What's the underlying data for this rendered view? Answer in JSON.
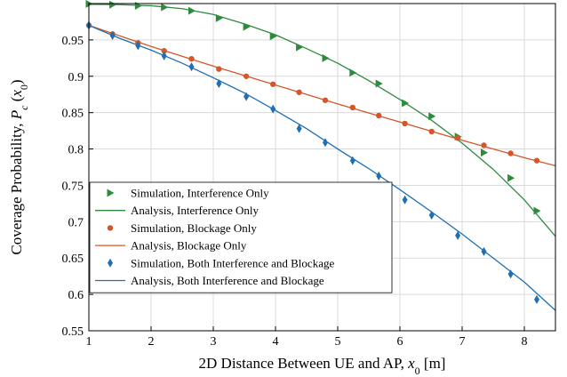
{
  "chart_data": {
    "type": "line",
    "xlabel": "2D Distance Between UE and AP, x0 [m]",
    "ylabel": "Coverage Probability, Pc (x0)",
    "xlim": [
      1,
      8.5
    ],
    "ylim": [
      0.55,
      1.0
    ],
    "xticks": [
      "1",
      "2",
      "3",
      "4",
      "5",
      "6",
      "7",
      "8"
    ],
    "yticks": [
      "0.55",
      "0.6",
      "0.65",
      "0.7",
      "0.75",
      "0.8",
      "0.85",
      "0.9",
      "0.95"
    ],
    "grid": true,
    "legend_position": "bottom-left",
    "series": [
      {
        "name": "Simulation, Interference Only",
        "kind": "markers",
        "marker": "triangle-right",
        "color": "#2e8b3e",
        "x": [
          1.0,
          1.38,
          1.79,
          2.21,
          2.65,
          3.09,
          3.53,
          3.96,
          4.38,
          4.8,
          5.24,
          5.66,
          6.08,
          6.51,
          6.93,
          7.35,
          7.78,
          8.2
        ],
        "y": [
          0.9995,
          0.9985,
          0.997,
          0.995,
          0.99,
          0.98,
          0.968,
          0.955,
          0.94,
          0.925,
          0.905,
          0.89,
          0.863,
          0.845,
          0.817,
          0.795,
          0.76,
          0.715
        ]
      },
      {
        "name": "Analysis, Interference Only",
        "kind": "line",
        "color": "#2e8b3e",
        "x": [
          1.0,
          1.5,
          2.0,
          2.5,
          3.0,
          3.5,
          4.0,
          4.5,
          5.0,
          5.5,
          6.0,
          6.5,
          7.0,
          7.5,
          8.0,
          8.5
        ],
        "y": [
          0.999,
          0.9985,
          0.997,
          0.993,
          0.985,
          0.972,
          0.957,
          0.938,
          0.918,
          0.894,
          0.868,
          0.84,
          0.808,
          0.772,
          0.73,
          0.68
        ]
      },
      {
        "name": "Simulation,  Blockage Only",
        "kind": "markers",
        "marker": "circle",
        "color": "#d4572a",
        "x": [
          1.0,
          1.38,
          1.79,
          2.21,
          2.65,
          3.09,
          3.53,
          3.96,
          4.38,
          4.8,
          5.24,
          5.66,
          6.08,
          6.51,
          6.93,
          7.35,
          7.78,
          8.2
        ],
        "y": [
          0.97,
          0.958,
          0.946,
          0.935,
          0.924,
          0.91,
          0.9,
          0.889,
          0.878,
          0.867,
          0.857,
          0.846,
          0.835,
          0.824,
          0.815,
          0.805,
          0.794,
          0.784
        ]
      },
      {
        "name": "Analysis,  Blockage Only",
        "kind": "line",
        "color": "#d4572a",
        "x": [
          1.0,
          2.0,
          3.0,
          4.0,
          5.0,
          6.0,
          7.0,
          8.0,
          8.5
        ],
        "y": [
          0.97,
          0.941,
          0.914,
          0.888,
          0.862,
          0.837,
          0.812,
          0.788,
          0.777
        ]
      },
      {
        "name": "Simulation, Both Interference and Blockage",
        "kind": "markers",
        "marker": "diamond",
        "color": "#1f6fb2",
        "x": [
          1.0,
          1.38,
          1.79,
          2.21,
          2.65,
          3.09,
          3.53,
          3.96,
          4.38,
          4.8,
          5.24,
          5.66,
          6.08,
          6.51,
          6.93,
          7.35,
          7.78,
          8.2
        ],
        "y": [
          0.97,
          0.956,
          0.942,
          0.928,
          0.913,
          0.89,
          0.872,
          0.855,
          0.828,
          0.809,
          0.784,
          0.763,
          0.73,
          0.709,
          0.681,
          0.659,
          0.628,
          0.593
        ]
      },
      {
        "name": "Analysis, Both Interference and Blockage",
        "kind": "line",
        "color": "#1f6fb2",
        "x": [
          1.0,
          1.5,
          2.0,
          2.5,
          3.0,
          3.5,
          4.0,
          4.5,
          5.0,
          5.5,
          6.0,
          6.5,
          7.0,
          7.5,
          8.0,
          8.5
        ],
        "y": [
          0.97,
          0.952,
          0.936,
          0.918,
          0.898,
          0.877,
          0.853,
          0.828,
          0.8,
          0.773,
          0.744,
          0.714,
          0.683,
          0.65,
          0.617,
          0.578
        ]
      }
    ]
  }
}
